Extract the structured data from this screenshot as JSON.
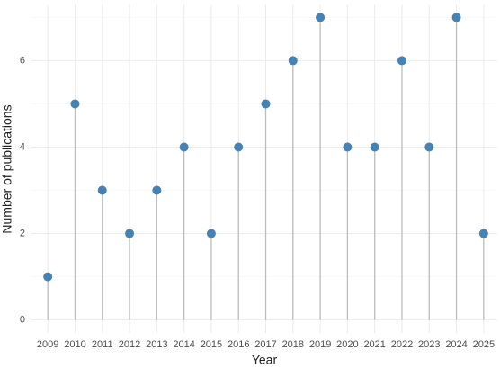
{
  "chart_data": {
    "type": "lollipop",
    "x_label": "Year",
    "y_label": "Number of publications",
    "x": [
      2009,
      2010,
      2011,
      2012,
      2013,
      2014,
      2015,
      2016,
      2017,
      2018,
      2019,
      2020,
      2021,
      2022,
      2023,
      2024,
      2025
    ],
    "values": [
      1,
      5,
      3,
      2,
      3,
      4,
      2,
      4,
      5,
      6,
      7,
      4,
      4,
      6,
      4,
      7,
      2
    ],
    "color": "#4682b4",
    "stem_color": "#bdbdbd",
    "xlim": [
      2008.4,
      2025.5
    ],
    "xticks": [
      2009,
      2010,
      2011,
      2012,
      2013,
      2014,
      2015,
      2016,
      2017,
      2018,
      2019,
      2020,
      2021,
      2022,
      2023,
      2024,
      2025
    ],
    "ylim": [
      -0.3,
      7.3
    ],
    "yticks": [
      0,
      2,
      4,
      6
    ],
    "y_minor_grid": [
      1,
      3,
      5,
      7
    ],
    "grid": true
  }
}
